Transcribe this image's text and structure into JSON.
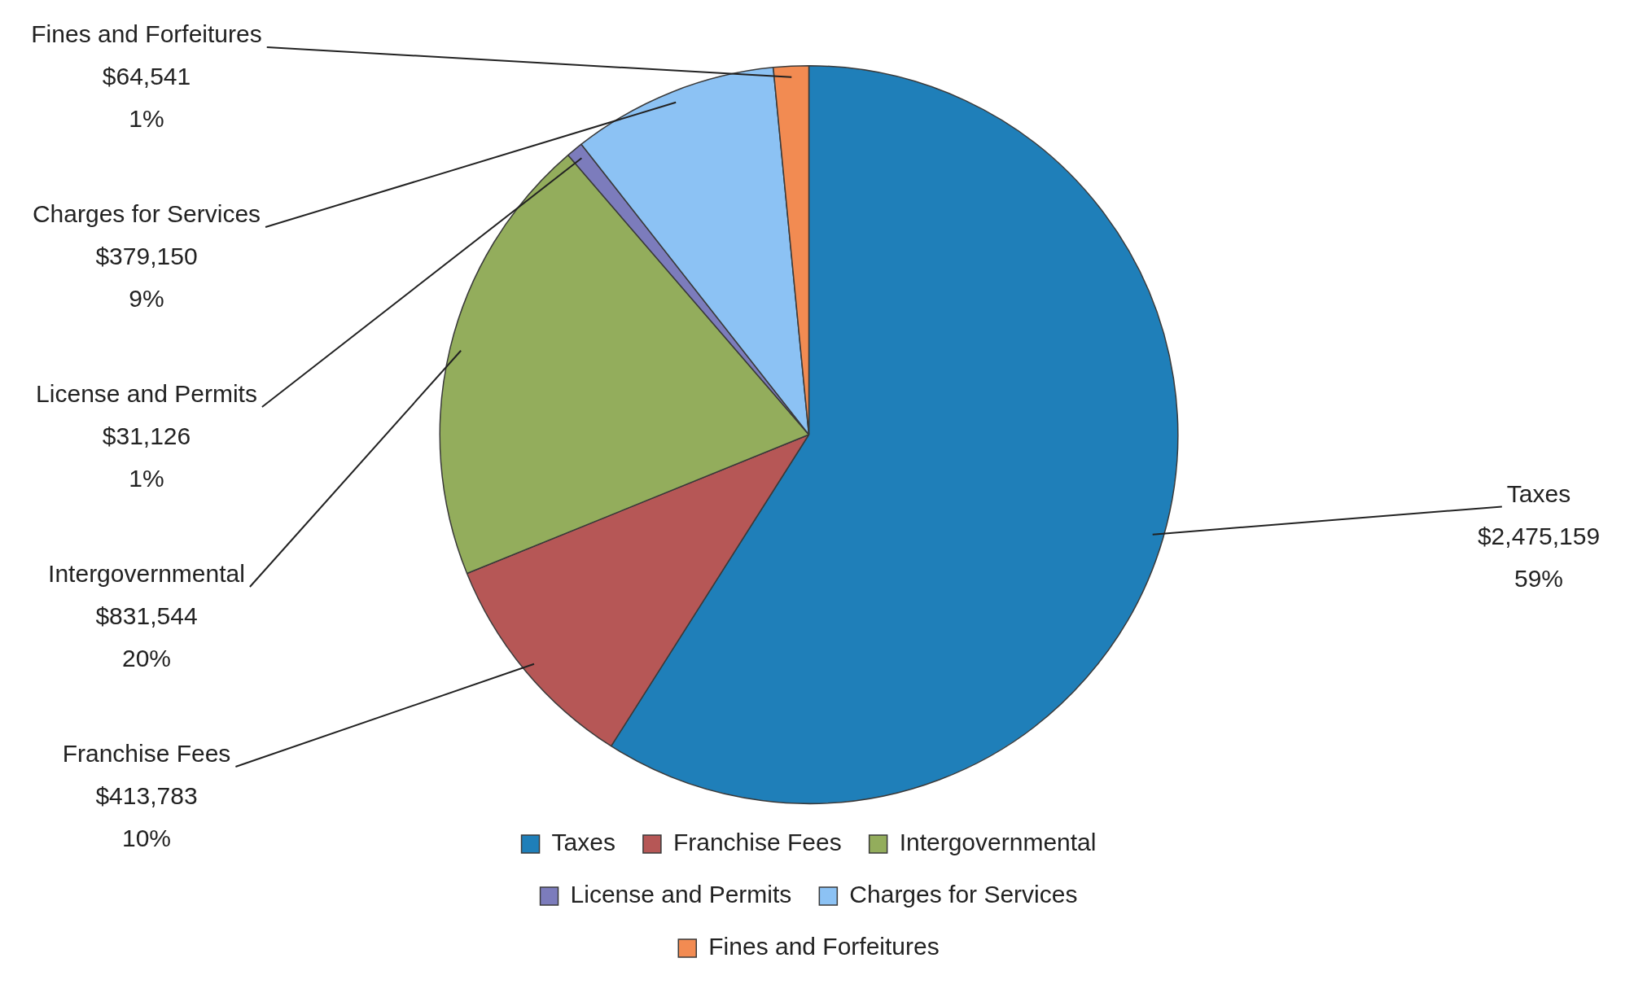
{
  "chart_data": {
    "type": "pie",
    "categories": [
      "Taxes",
      "Franchise Fees",
      "Intergovernmental",
      "License and Permits",
      "Charges for Services",
      "Fines and Forfeitures"
    ],
    "values": [
      2475159,
      413783,
      831544,
      31126,
      379150,
      64541
    ],
    "colors": [
      "#1f7fb9",
      "#b65756",
      "#93ad5c",
      "#7c7cbc",
      "#8cc2f4",
      "#f28b52"
    ],
    "value_labels": [
      "$2,475,159\n59%",
      "$413,783\n10%",
      "$831,544\n20%",
      "$31,126\n1%",
      "$379,150\n9%",
      "$64,541\n1%"
    ],
    "legend": "bottom"
  }
}
